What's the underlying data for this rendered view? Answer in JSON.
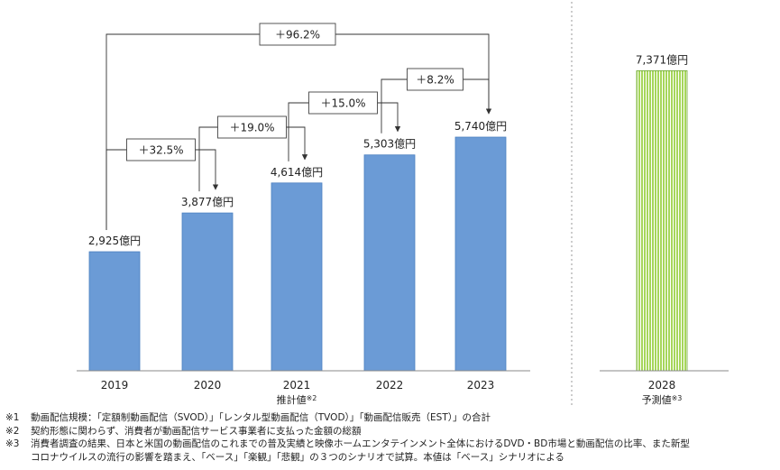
{
  "chart_data": {
    "type": "bar",
    "categories": [
      "2019",
      "2020",
      "2021",
      "2022",
      "2023",
      "2028"
    ],
    "values": [
      2925,
      3877,
      4614,
      5303,
      5740,
      7371
    ],
    "value_labels": [
      "2,925億円",
      "3,877億円",
      "4,614億円",
      "5,303億円",
      "5,740億円",
      "7,371億円"
    ],
    "ylim": [
      0,
      8000
    ],
    "grid": false,
    "colors": {
      "actual": "#6b9bd6",
      "actual_edge": "#4a7fc0",
      "forecast": "#a6d65a",
      "forecast_edge": "#6ea832"
    },
    "group_labels": {
      "estimated": "推計値",
      "estimated_mark": "※2",
      "forecast": "予測値",
      "forecast_mark": "※3"
    },
    "growth": [
      {
        "label": "＋32.5%",
        "from": "2019",
        "to": "2020"
      },
      {
        "label": "＋19.0%",
        "from": "2020",
        "to": "2021"
      },
      {
        "label": "＋15.0%",
        "from": "2021",
        "to": "2022"
      },
      {
        "label": "＋8.2%",
        "from": "2022",
        "to": "2023"
      },
      {
        "label": "＋96.2%",
        "from": "2019",
        "to": "2023"
      }
    ]
  },
  "notes": [
    {
      "mark": "※1",
      "text": "動画配信規模：「定額制動画配信（SVOD）」「レンタル型動画配信（TVOD）」「動画配信販売（EST）」の合計"
    },
    {
      "mark": "※2",
      "text": "契約形態に関わらず、消費者が動画配信サービス事業者に支払った金額の総額"
    },
    {
      "mark": "※3",
      "text": "消費者調査の結果、日本と米国の動画配信のこれまでの普及実績と映像ホームエンタテインメント全体におけるDVD・BD市場と動画配信の比率、また新型"
    },
    {
      "mark": "",
      "text": "コロナウイルスの流行の影響を踏まえ、「ベース」「楽観」「悲観」の３つのシナリオで試算。本値は「ベース」シナリオによる"
    }
  ]
}
